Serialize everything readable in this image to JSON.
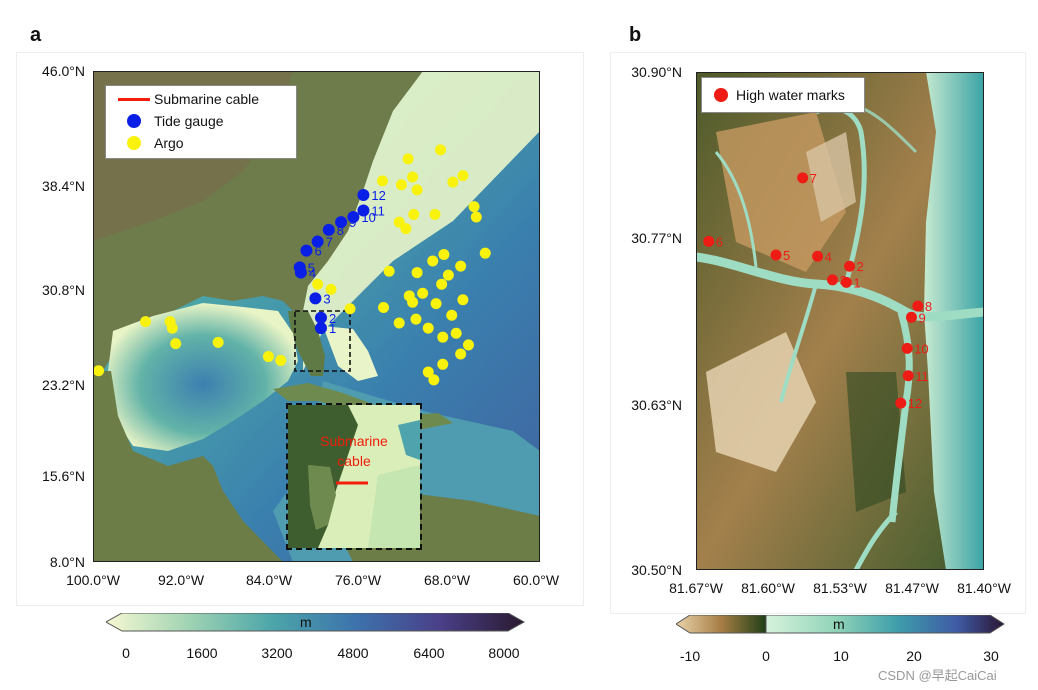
{
  "panel_a": {
    "label": "a",
    "y_ticks": [
      "46.0°N",
      "38.4°N",
      "30.8°N",
      "23.2°N",
      "15.6°N",
      "8.0°N"
    ],
    "x_ticks": [
      "100.0°W",
      "92.0°W",
      "84.0°W",
      "76.0°W",
      "68.0°W",
      "60.0°W"
    ],
    "legend": {
      "cable": "Submarine cable",
      "tide": "Tide gauge",
      "argo": "Argo"
    },
    "inset_label_1": "Submarine",
    "inset_label_2": "cable",
    "tide_gauges": [
      {
        "id": "1",
        "lon": -79.6,
        "lat": 26.1
      },
      {
        "id": "2",
        "lon": -79.6,
        "lat": 26.9
      },
      {
        "id": "3",
        "lon": -80.1,
        "lat": 28.4
      },
      {
        "id": "4",
        "lon": -81.4,
        "lat": 30.4
      },
      {
        "id": "5",
        "lon": -81.5,
        "lat": 30.8
      },
      {
        "id": "6",
        "lon": -80.9,
        "lat": 32.1
      },
      {
        "id": "7",
        "lon": -79.9,
        "lat": 32.8
      },
      {
        "id": "8",
        "lon": -78.9,
        "lat": 33.7
      },
      {
        "id": "9",
        "lon": -77.8,
        "lat": 34.3
      },
      {
        "id": "10",
        "lon": -76.7,
        "lat": 34.7
      },
      {
        "id": "11",
        "lon": -75.8,
        "lat": 35.2
      },
      {
        "id": "12",
        "lon": -75.8,
        "lat": 36.4
      }
    ],
    "argo": [
      {
        "lon": -99.5,
        "lat": 22.8
      },
      {
        "lon": -95.3,
        "lat": 26.6
      },
      {
        "lon": -93.1,
        "lat": 26.6
      },
      {
        "lon": -92.9,
        "lat": 26.1
      },
      {
        "lon": -92.6,
        "lat": 24.9
      },
      {
        "lon": -88.8,
        "lat": 25.0
      },
      {
        "lon": -84.3,
        "lat": 23.9
      },
      {
        "lon": -83.2,
        "lat": 23.6
      },
      {
        "lon": -79.9,
        "lat": 29.5
      },
      {
        "lon": -78.7,
        "lat": 29.1
      },
      {
        "lon": -77.0,
        "lat": 27.6
      },
      {
        "lon": -74.1,
        "lat": 37.5
      },
      {
        "lon": -72.4,
        "lat": 37.2
      },
      {
        "lon": -71.8,
        "lat": 39.2
      },
      {
        "lon": -71.4,
        "lat": 37.8
      },
      {
        "lon": -71.0,
        "lat": 36.8
      },
      {
        "lon": -69.4,
        "lat": 34.9
      },
      {
        "lon": -68.9,
        "lat": 39.9
      },
      {
        "lon": -67.8,
        "lat": 37.4
      },
      {
        "lon": -66.9,
        "lat": 37.9
      },
      {
        "lon": -65.9,
        "lat": 35.5
      },
      {
        "lon": -65.7,
        "lat": 34.7
      },
      {
        "lon": -64.9,
        "lat": 31.9
      },
      {
        "lon": -71.3,
        "lat": 34.9
      },
      {
        "lon": -72.6,
        "lat": 34.3
      },
      {
        "lon": -72.0,
        "lat": 33.8
      },
      {
        "lon": -73.5,
        "lat": 30.5
      },
      {
        "lon": -71.0,
        "lat": 30.4
      },
      {
        "lon": -69.6,
        "lat": 31.3
      },
      {
        "lon": -68.6,
        "lat": 31.8
      },
      {
        "lon": -68.2,
        "lat": 30.2
      },
      {
        "lon": -67.1,
        "lat": 30.9
      },
      {
        "lon": -68.8,
        "lat": 29.5
      },
      {
        "lon": -70.5,
        "lat": 28.8
      },
      {
        "lon": -71.7,
        "lat": 28.6
      },
      {
        "lon": -71.4,
        "lat": 28.1
      },
      {
        "lon": -69.3,
        "lat": 28.0
      },
      {
        "lon": -66.9,
        "lat": 28.3
      },
      {
        "lon": -74.0,
        "lat": 27.7
      },
      {
        "lon": -71.1,
        "lat": 26.8
      },
      {
        "lon": -67.9,
        "lat": 27.1
      },
      {
        "lon": -70.0,
        "lat": 26.1
      },
      {
        "lon": -68.7,
        "lat": 25.4
      },
      {
        "lon": -67.5,
        "lat": 25.7
      },
      {
        "lon": -66.4,
        "lat": 24.8
      },
      {
        "lon": -67.1,
        "lat": 24.1
      },
      {
        "lon": -68.7,
        "lat": 23.3
      },
      {
        "lon": -70.0,
        "lat": 22.7
      },
      {
        "lon": -69.5,
        "lat": 22.1
      },
      {
        "lon": -72.6,
        "lat": 26.5
      }
    ],
    "colorbar": {
      "unit": "m",
      "ticks": [
        "0",
        "1600",
        "3200",
        "4800",
        "6400",
        "8000"
      ]
    }
  },
  "panel_b": {
    "label": "b",
    "y_ticks": [
      "30.90°N",
      "30.77°N",
      "30.63°N",
      "30.50°N"
    ],
    "x_ticks": [
      "81.67°W",
      "81.60°W",
      "81.53°W",
      "81.47°W",
      "81.40°W"
    ],
    "legend": {
      "hwm": "High water marks"
    },
    "hwm": [
      {
        "id": "1",
        "lon": -81.529,
        "lat": 30.731
      },
      {
        "id": "2",
        "lon": -81.526,
        "lat": 30.744
      },
      {
        "id": "3",
        "lon": -81.542,
        "lat": 30.733
      },
      {
        "id": "4",
        "lon": -81.556,
        "lat": 30.752
      },
      {
        "id": "5",
        "lon": -81.595,
        "lat": 30.753
      },
      {
        "id": "6",
        "lon": -81.658,
        "lat": 30.764
      },
      {
        "id": "7",
        "lon": -81.57,
        "lat": 30.815
      },
      {
        "id": "8",
        "lon": -81.462,
        "lat": 30.712
      },
      {
        "id": "9",
        "lon": -81.468,
        "lat": 30.703
      },
      {
        "id": "10",
        "lon": -81.472,
        "lat": 30.678
      },
      {
        "id": "11",
        "lon": -81.471,
        "lat": 30.656
      },
      {
        "id": "12",
        "lon": -81.478,
        "lat": 30.634
      }
    ],
    "colorbar": {
      "unit": "m",
      "ticks": [
        "-10",
        "0",
        "10",
        "20",
        "30"
      ]
    }
  },
  "colors": {
    "tide": "#0a1fe6",
    "argo": "#f8f20c",
    "cable": "#f21d0c",
    "hwm": "#ee1c14"
  },
  "watermark": "CSDN @早起CaiCai"
}
